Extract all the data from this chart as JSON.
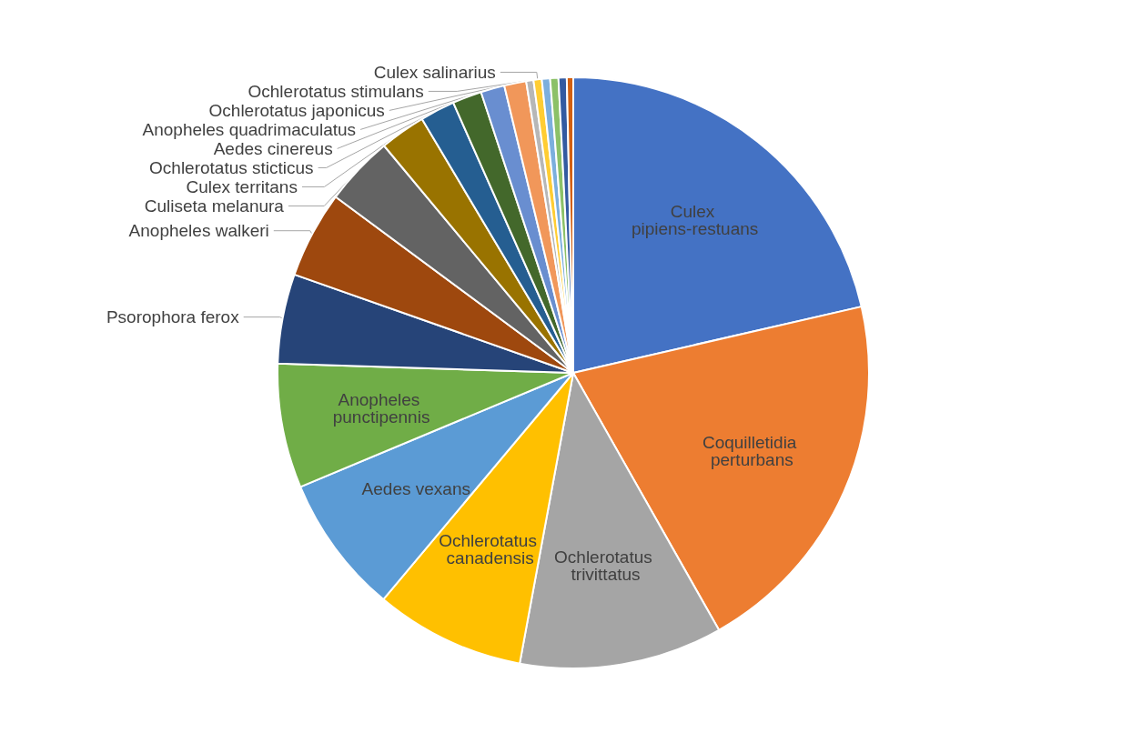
{
  "chart_data": {
    "type": "pie",
    "categories": [
      "Culex pipiens-restuans",
      "Coquilletidia perturbans",
      "Ochlerotatus trivittatus",
      "Ochlerotatus canadensis",
      "Aedes vexans",
      "Anopheles punctipennis",
      "Psorophora ferox",
      "Anopheles walkeri",
      "Culiseta melanura",
      "Culex territans",
      "Ochlerotatus sticticus",
      "Aedes cinereus",
      "Anopheles quadrimaculatus",
      "Ochlerotatus japonicus",
      "Ochlerotatus stimulans",
      "Culex salinarius",
      null,
      null,
      null,
      null
    ],
    "values": [
      21.4,
      20.4,
      11.1,
      8.2,
      7.6,
      6.8,
      4.9,
      4.75,
      3.8,
      2.5,
      1.9,
      1.6,
      1.3,
      1.2,
      0.4,
      0.45,
      0.45,
      0.45,
      0.45,
      0.35
    ],
    "colors": [
      "#4472c4",
      "#ed7d31",
      "#a5a5a5",
      "#ffc000",
      "#5b9bd5",
      "#70ad47",
      "#264478",
      "#9e480e",
      "#636363",
      "#997300",
      "#255e91",
      "#43682b",
      "#698ed0",
      "#f1975a",
      "#b7b7b7",
      "#ffcd33",
      "#7cafdd",
      "#8cc168",
      "#335aa1",
      "#d26012"
    ]
  }
}
